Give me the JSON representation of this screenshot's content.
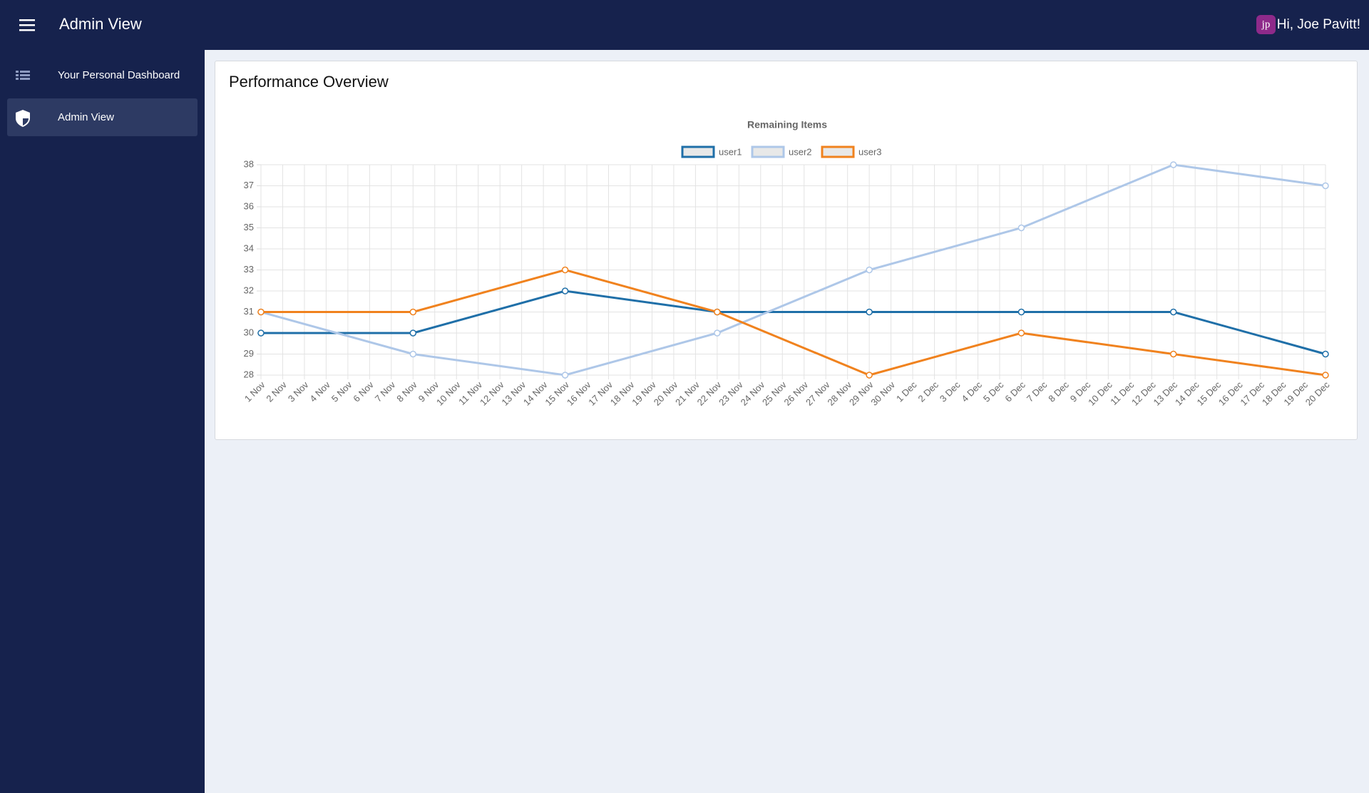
{
  "header": {
    "title": "Admin View",
    "user_initials": "jp",
    "greeting": "Hi, Joe Pavitt!"
  },
  "sidebar": {
    "items": [
      "Your Personal Dashboard",
      "Admin View"
    ]
  },
  "card": {
    "title": "Performance Overview"
  },
  "chart_data": {
    "type": "line",
    "title": "Remaining Items",
    "categories": [
      "1 Nov",
      "2 Nov",
      "3 Nov",
      "4 Nov",
      "5 Nov",
      "6 Nov",
      "7 Nov",
      "8 Nov",
      "9 Nov",
      "10 Nov",
      "11 Nov",
      "12 Nov",
      "13 Nov",
      "14 Nov",
      "15 Nov",
      "16 Nov",
      "17 Nov",
      "18 Nov",
      "19 Nov",
      "20 Nov",
      "21 Nov",
      "22 Nov",
      "23 Nov",
      "24 Nov",
      "25 Nov",
      "26 Nov",
      "27 Nov",
      "28 Nov",
      "29 Nov",
      "30 Nov",
      "1 Dec",
      "2 Dec",
      "3 Dec",
      "4 Dec",
      "5 Dec",
      "6 Dec",
      "7 Dec",
      "8 Dec",
      "9 Dec",
      "10 Dec",
      "11 Dec",
      "12 Dec",
      "13 Dec",
      "14 Dec",
      "15 Dec",
      "16 Dec",
      "17 Dec",
      "18 Dec",
      "19 Dec",
      "20 Dec"
    ],
    "x": [
      "1 Nov",
      "8 Nov",
      "15 Nov",
      "22 Nov",
      "29 Nov",
      "6 Dec",
      "13 Dec",
      "20 Dec"
    ],
    "series": [
      {
        "name": "user1",
        "color": "#1f6fa8",
        "values": [
          30,
          30,
          32,
          31,
          31,
          31,
          31,
          29
        ]
      },
      {
        "name": "user2",
        "color": "#aec7e8",
        "values": [
          31,
          29,
          28,
          30,
          33,
          35,
          38,
          37
        ]
      },
      {
        "name": "user3",
        "color": "#f0821e",
        "values": [
          31,
          31,
          33,
          31,
          28,
          30,
          29,
          28
        ]
      }
    ],
    "ylim": [
      28,
      38
    ],
    "yticks": [
      28,
      29,
      30,
      31,
      32,
      33,
      34,
      35,
      36,
      37,
      38
    ],
    "grid": true,
    "legend": "top"
  }
}
